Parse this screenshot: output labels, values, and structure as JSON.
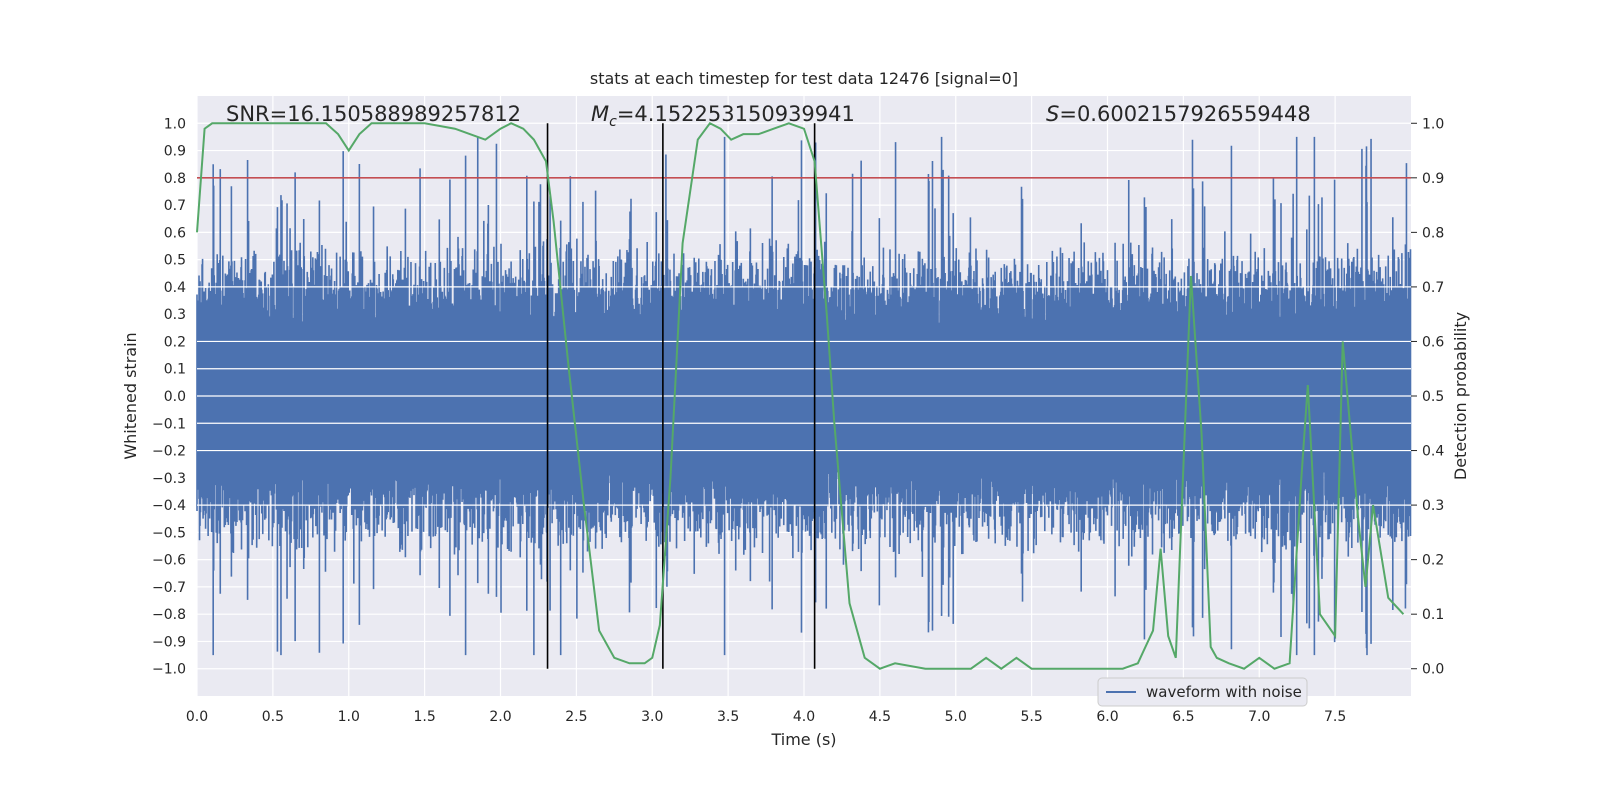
{
  "chart_data": {
    "type": "line",
    "title": "stats at each timestep for test data 12476 [signal=0]",
    "xlabel": "Time (s)",
    "ylabel_left": "Whitened strain",
    "ylabel_right": "Detection probability",
    "xlim": [
      0.0,
      8.0
    ],
    "ylim_left": [
      -1.1,
      1.1
    ],
    "ylim_right": [
      -0.05,
      1.05
    ],
    "x_ticks": [
      "0.0",
      "0.5",
      "1.0",
      "1.5",
      "2.0",
      "2.5",
      "3.0",
      "3.5",
      "4.0",
      "4.5",
      "5.0",
      "5.5",
      "6.0",
      "6.5",
      "7.0",
      "7.5"
    ],
    "y_left_ticks": [
      "1.0",
      "0.9",
      "0.8",
      "0.7",
      "0.6",
      "0.5",
      "0.4",
      "0.3",
      "0.2",
      "0.1",
      "0.0",
      "−0.1",
      "−0.2",
      "−0.3",
      "−0.4",
      "−0.5",
      "−0.6",
      "−0.7",
      "−0.8",
      "−0.9",
      "−1.0"
    ],
    "y_right_ticks": [
      "1.0",
      "0.9",
      "0.8",
      "0.7",
      "0.6",
      "0.5",
      "0.4",
      "0.3",
      "0.2",
      "0.1",
      "0.0"
    ],
    "annotations": {
      "snr": "SNR=16.150588989257812",
      "mc_symbol": "M",
      "mc_sub": "c",
      "mc_value": "=4.152253150939941",
      "s_symbol": "S",
      "s_value": "=0.6002157926559448"
    },
    "threshold": {
      "name": "threshold",
      "value": 0.9,
      "axis": "right",
      "color": "#c44e52"
    },
    "vertical_lines": [
      2.31,
      3.07,
      4.07
    ],
    "legend": {
      "label": "waveform with noise",
      "placement": "lower-right"
    },
    "waveform": {
      "name": "waveform with noise",
      "color": "#4c72b0",
      "description": "dense whitened noise, stochastic reconstruction",
      "typical_envelope": 0.42,
      "peak_max": 0.95
    },
    "probability": {
      "name": "detection probability",
      "color": "#55a868",
      "x": [
        0.0,
        0.05,
        0.1,
        0.2,
        0.3,
        0.5,
        0.7,
        0.85,
        0.93,
        1.0,
        1.07,
        1.15,
        1.3,
        1.5,
        1.7,
        1.8,
        1.9,
        2.0,
        2.07,
        2.15,
        2.22,
        2.3,
        2.35,
        2.45,
        2.55,
        2.65,
        2.75,
        2.85,
        2.95,
        3.0,
        3.05,
        3.12,
        3.2,
        3.3,
        3.38,
        3.45,
        3.52,
        3.6,
        3.7,
        3.8,
        3.9,
        4.0,
        4.07,
        4.15,
        4.2,
        4.3,
        4.4,
        4.5,
        4.6,
        4.8,
        5.0,
        5.1,
        5.2,
        5.3,
        5.4,
        5.5,
        5.6,
        5.8,
        6.0,
        6.1,
        6.2,
        6.3,
        6.35,
        6.4,
        6.45,
        6.55,
        6.62,
        6.68,
        6.72,
        6.8,
        6.9,
        7.0,
        7.1,
        7.2,
        7.28,
        7.32,
        7.4,
        7.5,
        7.55,
        7.65,
        7.7,
        7.75,
        7.85,
        7.95
      ],
      "y": [
        0.8,
        0.99,
        1.0,
        1.0,
        1.0,
        1.0,
        1.0,
        1.0,
        0.98,
        0.95,
        0.98,
        1.0,
        1.0,
        1.0,
        0.99,
        0.98,
        0.97,
        0.99,
        1.0,
        0.99,
        0.97,
        0.93,
        0.82,
        0.55,
        0.3,
        0.07,
        0.02,
        0.01,
        0.01,
        0.02,
        0.08,
        0.35,
        0.78,
        0.97,
        1.0,
        0.99,
        0.97,
        0.98,
        0.98,
        0.99,
        1.0,
        0.99,
        0.93,
        0.65,
        0.45,
        0.12,
        0.02,
        0.0,
        0.01,
        0.0,
        0.0,
        0.0,
        0.02,
        0.0,
        0.02,
        0.0,
        0.0,
        0.0,
        0.0,
        0.0,
        0.01,
        0.07,
        0.22,
        0.06,
        0.02,
        0.72,
        0.43,
        0.04,
        0.02,
        0.01,
        0.0,
        0.02,
        0.0,
        0.01,
        0.36,
        0.52,
        0.1,
        0.06,
        0.6,
        0.28,
        0.15,
        0.3,
        0.13,
        0.1
      ]
    }
  }
}
